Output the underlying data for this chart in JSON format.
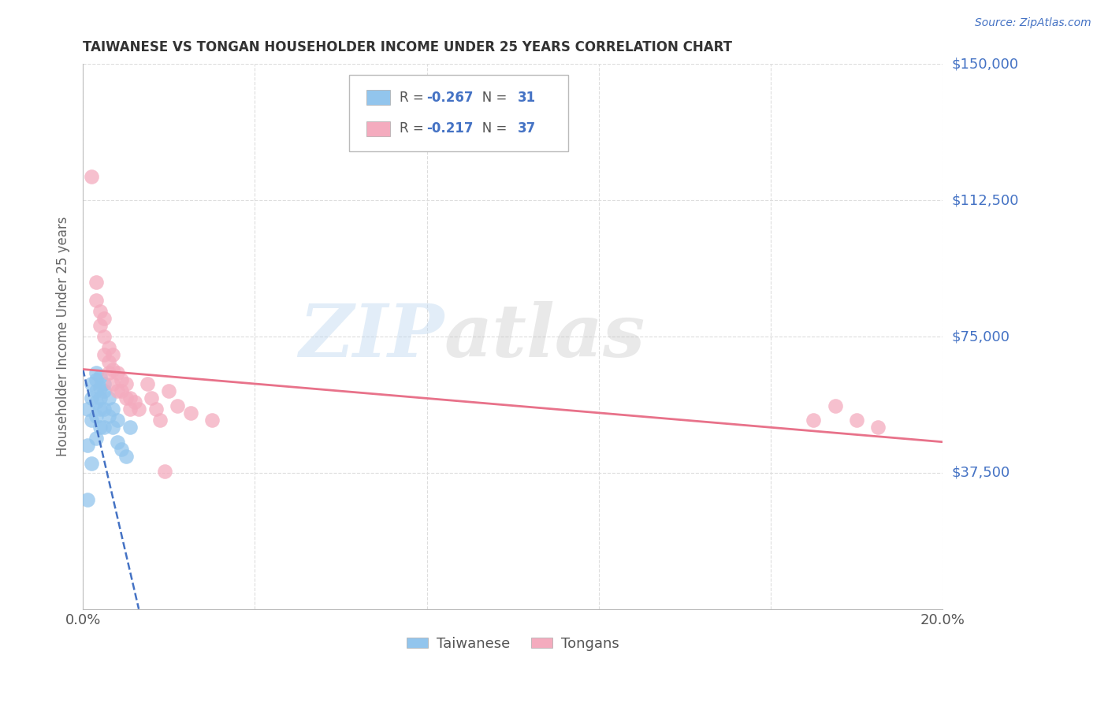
{
  "title": "TAIWANESE VS TONGAN HOUSEHOLDER INCOME UNDER 25 YEARS CORRELATION CHART",
  "source": "Source: ZipAtlas.com",
  "ylabel": "Householder Income Under 25 years",
  "ylim": [
    0,
    150000
  ],
  "xlim": [
    0.0,
    0.2
  ],
  "ytick_vals": [
    0,
    37500,
    75000,
    112500,
    150000
  ],
  "ytick_labels": [
    "",
    "$37,500",
    "$75,000",
    "$112,500",
    "$150,000"
  ],
  "taiwanese_color": "#92C5ED",
  "tongan_color": "#F4ABBE",
  "taiwanese_R": -0.267,
  "taiwanese_N": 31,
  "tongan_R": -0.217,
  "tongan_N": 37,
  "taiwanese_x": [
    0.001,
    0.001,
    0.001,
    0.002,
    0.002,
    0.002,
    0.002,
    0.003,
    0.003,
    0.003,
    0.003,
    0.003,
    0.003,
    0.004,
    0.004,
    0.004,
    0.004,
    0.004,
    0.005,
    0.005,
    0.005,
    0.005,
    0.006,
    0.006,
    0.007,
    0.007,
    0.008,
    0.008,
    0.009,
    0.01,
    0.011
  ],
  "taiwanese_y": [
    55000,
    45000,
    30000,
    62000,
    58000,
    52000,
    40000,
    65000,
    63000,
    60000,
    57000,
    53000,
    47000,
    64000,
    61000,
    58000,
    55000,
    50000,
    62000,
    60000,
    55000,
    50000,
    58000,
    53000,
    55000,
    50000,
    52000,
    46000,
    44000,
    42000,
    50000
  ],
  "tongan_x": [
    0.002,
    0.003,
    0.003,
    0.004,
    0.004,
    0.005,
    0.005,
    0.005,
    0.006,
    0.006,
    0.006,
    0.007,
    0.007,
    0.007,
    0.008,
    0.008,
    0.009,
    0.009,
    0.01,
    0.01,
    0.011,
    0.011,
    0.012,
    0.013,
    0.015,
    0.016,
    0.017,
    0.018,
    0.019,
    0.02,
    0.022,
    0.025,
    0.03,
    0.17,
    0.175,
    0.18,
    0.185
  ],
  "tongan_y": [
    119000,
    90000,
    85000,
    82000,
    78000,
    80000,
    75000,
    70000,
    72000,
    68000,
    65000,
    70000,
    66000,
    62000,
    65000,
    60000,
    63000,
    60000,
    62000,
    58000,
    58000,
    55000,
    57000,
    55000,
    62000,
    58000,
    55000,
    52000,
    38000,
    60000,
    56000,
    54000,
    52000,
    52000,
    56000,
    52000,
    50000
  ],
  "background_color": "#FFFFFF",
  "watermark_zip": "ZIP",
  "watermark_atlas": "atlas",
  "grid_color": "#DDDDDD",
  "title_color": "#333333",
  "axis_label_color": "#666666",
  "ytick_color": "#4472C4",
  "tw_line_color": "#4472C4",
  "to_line_color": "#E8728A",
  "legend_text_color": "#4472C4"
}
